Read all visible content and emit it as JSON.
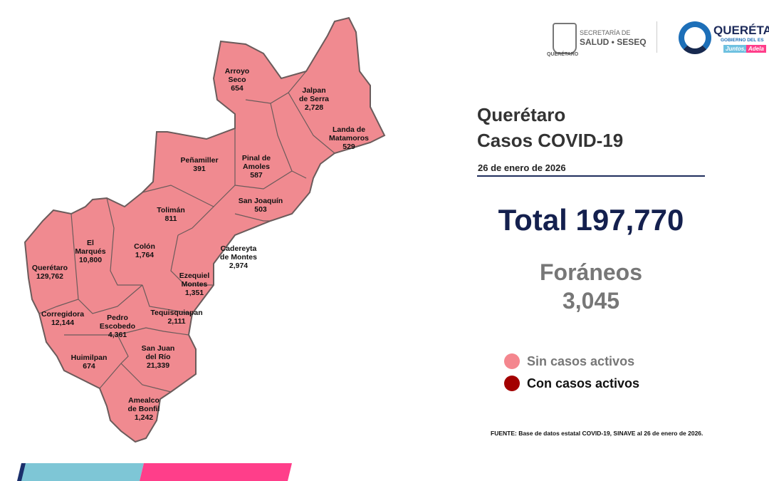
{
  "header": {
    "secretaria_line1": "SECRETARÍA DE",
    "secretaria_line2": "SALUD • SESEQ",
    "seal_text": "QUERÉTARO",
    "gov_title": "QUERÉTA",
    "gov_sub": "GOBIERNO DEL ES",
    "gov_slogan_a": "Juntos,",
    "gov_slogan_b": "Adela"
  },
  "panel": {
    "title_line1": "Querétaro",
    "title_line2": "Casos COVID-19",
    "date": "26 de enero de 2026",
    "total": "Total 197,770",
    "foraneos_label": "Foráneos",
    "foraneos_value": "3,045"
  },
  "legend": [
    {
      "label": "Sin casos activos",
      "color": "#f4868e"
    },
    {
      "label": "Con casos activos",
      "color": "#a30000"
    }
  ],
  "source": "FUENTE: Base de datos estatal  COVID-19,  SINAVE  al 26 de enero de 2026.",
  "map": {
    "fill": "#f08a90",
    "stroke": "#6b5b5b",
    "municipalities": [
      {
        "name": "Arroyo\nSeco",
        "cases": "654"
      },
      {
        "name": "Jalpan\nde Serra",
        "cases": "2,728"
      },
      {
        "name": "Landa de\nMatamoros",
        "cases": "529"
      },
      {
        "name": "Pinal de\nAmoles",
        "cases": "587"
      },
      {
        "name": "Peñamiller",
        "cases": "391"
      },
      {
        "name": "San Joaquín",
        "cases": "503"
      },
      {
        "name": "Tolimán",
        "cases": "811"
      },
      {
        "name": "El\nMarqués",
        "cases": "10,800"
      },
      {
        "name": "Colón",
        "cases": "1,764"
      },
      {
        "name": "Cadereyta\nde Montes",
        "cases": "2,974"
      },
      {
        "name": "Querétaro",
        "cases": "129,762"
      },
      {
        "name": "Ezequiel\nMontes",
        "cases": "1,351"
      },
      {
        "name": "Corregidora",
        "cases": "12,144"
      },
      {
        "name": "Pedro\nEscobedo",
        "cases": "4,361"
      },
      {
        "name": "Tequisquiapan",
        "cases": "2,111"
      },
      {
        "name": "San Juan\ndel Río",
        "cases": "21,339"
      },
      {
        "name": "Huimilpan",
        "cases": "674"
      },
      {
        "name": "Amealco\nde Bonfil",
        "cases": "1,242"
      }
    ]
  },
  "footer_bar": {
    "color_a": "#7ec6d6",
    "color_b": "#ff3e8a",
    "color_edge": "#1a2f6b"
  }
}
